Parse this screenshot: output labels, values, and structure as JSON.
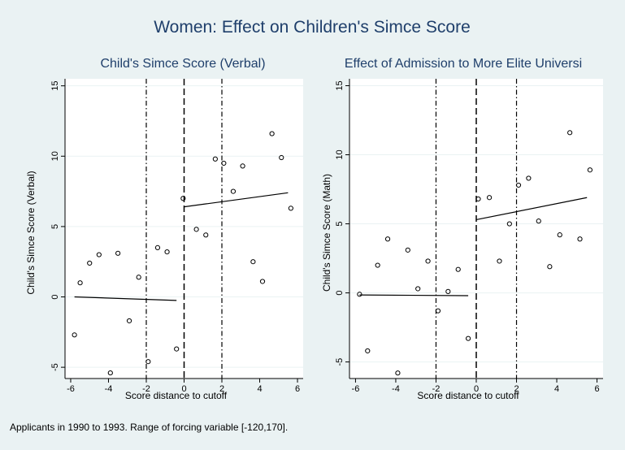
{
  "figure": {
    "title": "Women: Effect on Children's Simce Score",
    "note": "Applicants in 1990 to 1993. Range of forcing variable [-120,170]."
  },
  "colors": {
    "background": "#eaf2f3",
    "plot_area": "#ffffff",
    "title": "#1f3f6b",
    "axis": "#000000",
    "points": "#000000",
    "grid": "#eaf2f3"
  },
  "chart_data": [
    {
      "type": "scatter",
      "title": "Child's Simce Score (Verbal)",
      "xlabel": "Score distance to cutoff",
      "ylabel": "Child's Simce Score (Verbal)",
      "xlim": [
        -6.3,
        6.3
      ],
      "ylim": [
        -5.8,
        15.5
      ],
      "xticks": [
        -6,
        -4,
        -2,
        0,
        2,
        4,
        6
      ],
      "yticks": [
        -5,
        0,
        5,
        10,
        15
      ],
      "cutoff_line": 0,
      "bandwidth_lines": [
        -2,
        2
      ],
      "points": [
        [
          -5.8,
          -2.7
        ],
        [
          -5.5,
          1.0
        ],
        [
          -5.0,
          2.4
        ],
        [
          -4.5,
          3.0
        ],
        [
          -3.9,
          -5.4
        ],
        [
          -3.5,
          3.1
        ],
        [
          -2.9,
          -1.7
        ],
        [
          -2.4,
          1.4
        ],
        [
          -1.9,
          -4.6
        ],
        [
          -1.4,
          3.5
        ],
        [
          -0.9,
          3.2
        ],
        [
          -0.4,
          -3.7
        ],
        [
          -0.05,
          7.0
        ],
        [
          0.65,
          4.8
        ],
        [
          1.15,
          4.4
        ],
        [
          1.65,
          9.8
        ],
        [
          2.1,
          9.5
        ],
        [
          2.6,
          7.5
        ],
        [
          3.1,
          9.3
        ],
        [
          3.65,
          2.5
        ],
        [
          4.15,
          1.1
        ],
        [
          4.65,
          11.6
        ],
        [
          5.15,
          9.9
        ],
        [
          5.65,
          6.3
        ]
      ],
      "fit_lines": [
        {
          "x": [
            -5.8,
            -0.4
          ],
          "y": [
            0.0,
            -0.25
          ]
        },
        {
          "x": [
            0.0,
            5.5
          ],
          "y": [
            6.4,
            7.4
          ]
        }
      ]
    },
    {
      "type": "scatter",
      "title": "Effect of Admission to More Elite Universi",
      "xlabel": "Score distance to cutoff",
      "ylabel": "Child's Simce Score (Math)",
      "xlim": [
        -6.3,
        6.3
      ],
      "ylim": [
        -6.2,
        15.5
      ],
      "xticks": [
        -6,
        -4,
        -2,
        0,
        2,
        4,
        6
      ],
      "yticks": [
        -5,
        0,
        5,
        10,
        15
      ],
      "cutoff_line": 0,
      "bandwidth_lines": [
        -2,
        2
      ],
      "points": [
        [
          -5.8,
          -0.1
        ],
        [
          -5.4,
          -4.2
        ],
        [
          -4.9,
          2.0
        ],
        [
          -4.4,
          3.9
        ],
        [
          -3.9,
          -5.8
        ],
        [
          -3.4,
          3.1
        ],
        [
          -2.9,
          0.3
        ],
        [
          -2.4,
          2.3
        ],
        [
          -1.9,
          -1.3
        ],
        [
          -1.4,
          0.1
        ],
        [
          -0.9,
          1.7
        ],
        [
          -0.4,
          -3.3
        ],
        [
          0.1,
          6.8
        ],
        [
          0.65,
          6.9
        ],
        [
          1.15,
          2.3
        ],
        [
          1.65,
          5.0
        ],
        [
          2.1,
          7.8
        ],
        [
          2.6,
          8.3
        ],
        [
          3.1,
          5.2
        ],
        [
          3.65,
          1.9
        ],
        [
          4.15,
          4.2
        ],
        [
          4.65,
          11.6
        ],
        [
          5.15,
          3.9
        ],
        [
          5.65,
          8.9
        ]
      ],
      "fit_lines": [
        {
          "x": [
            -5.8,
            -0.4
          ],
          "y": [
            -0.15,
            -0.2
          ]
        },
        {
          "x": [
            0.0,
            5.5
          ],
          "y": [
            5.3,
            6.9
          ]
        }
      ]
    }
  ]
}
